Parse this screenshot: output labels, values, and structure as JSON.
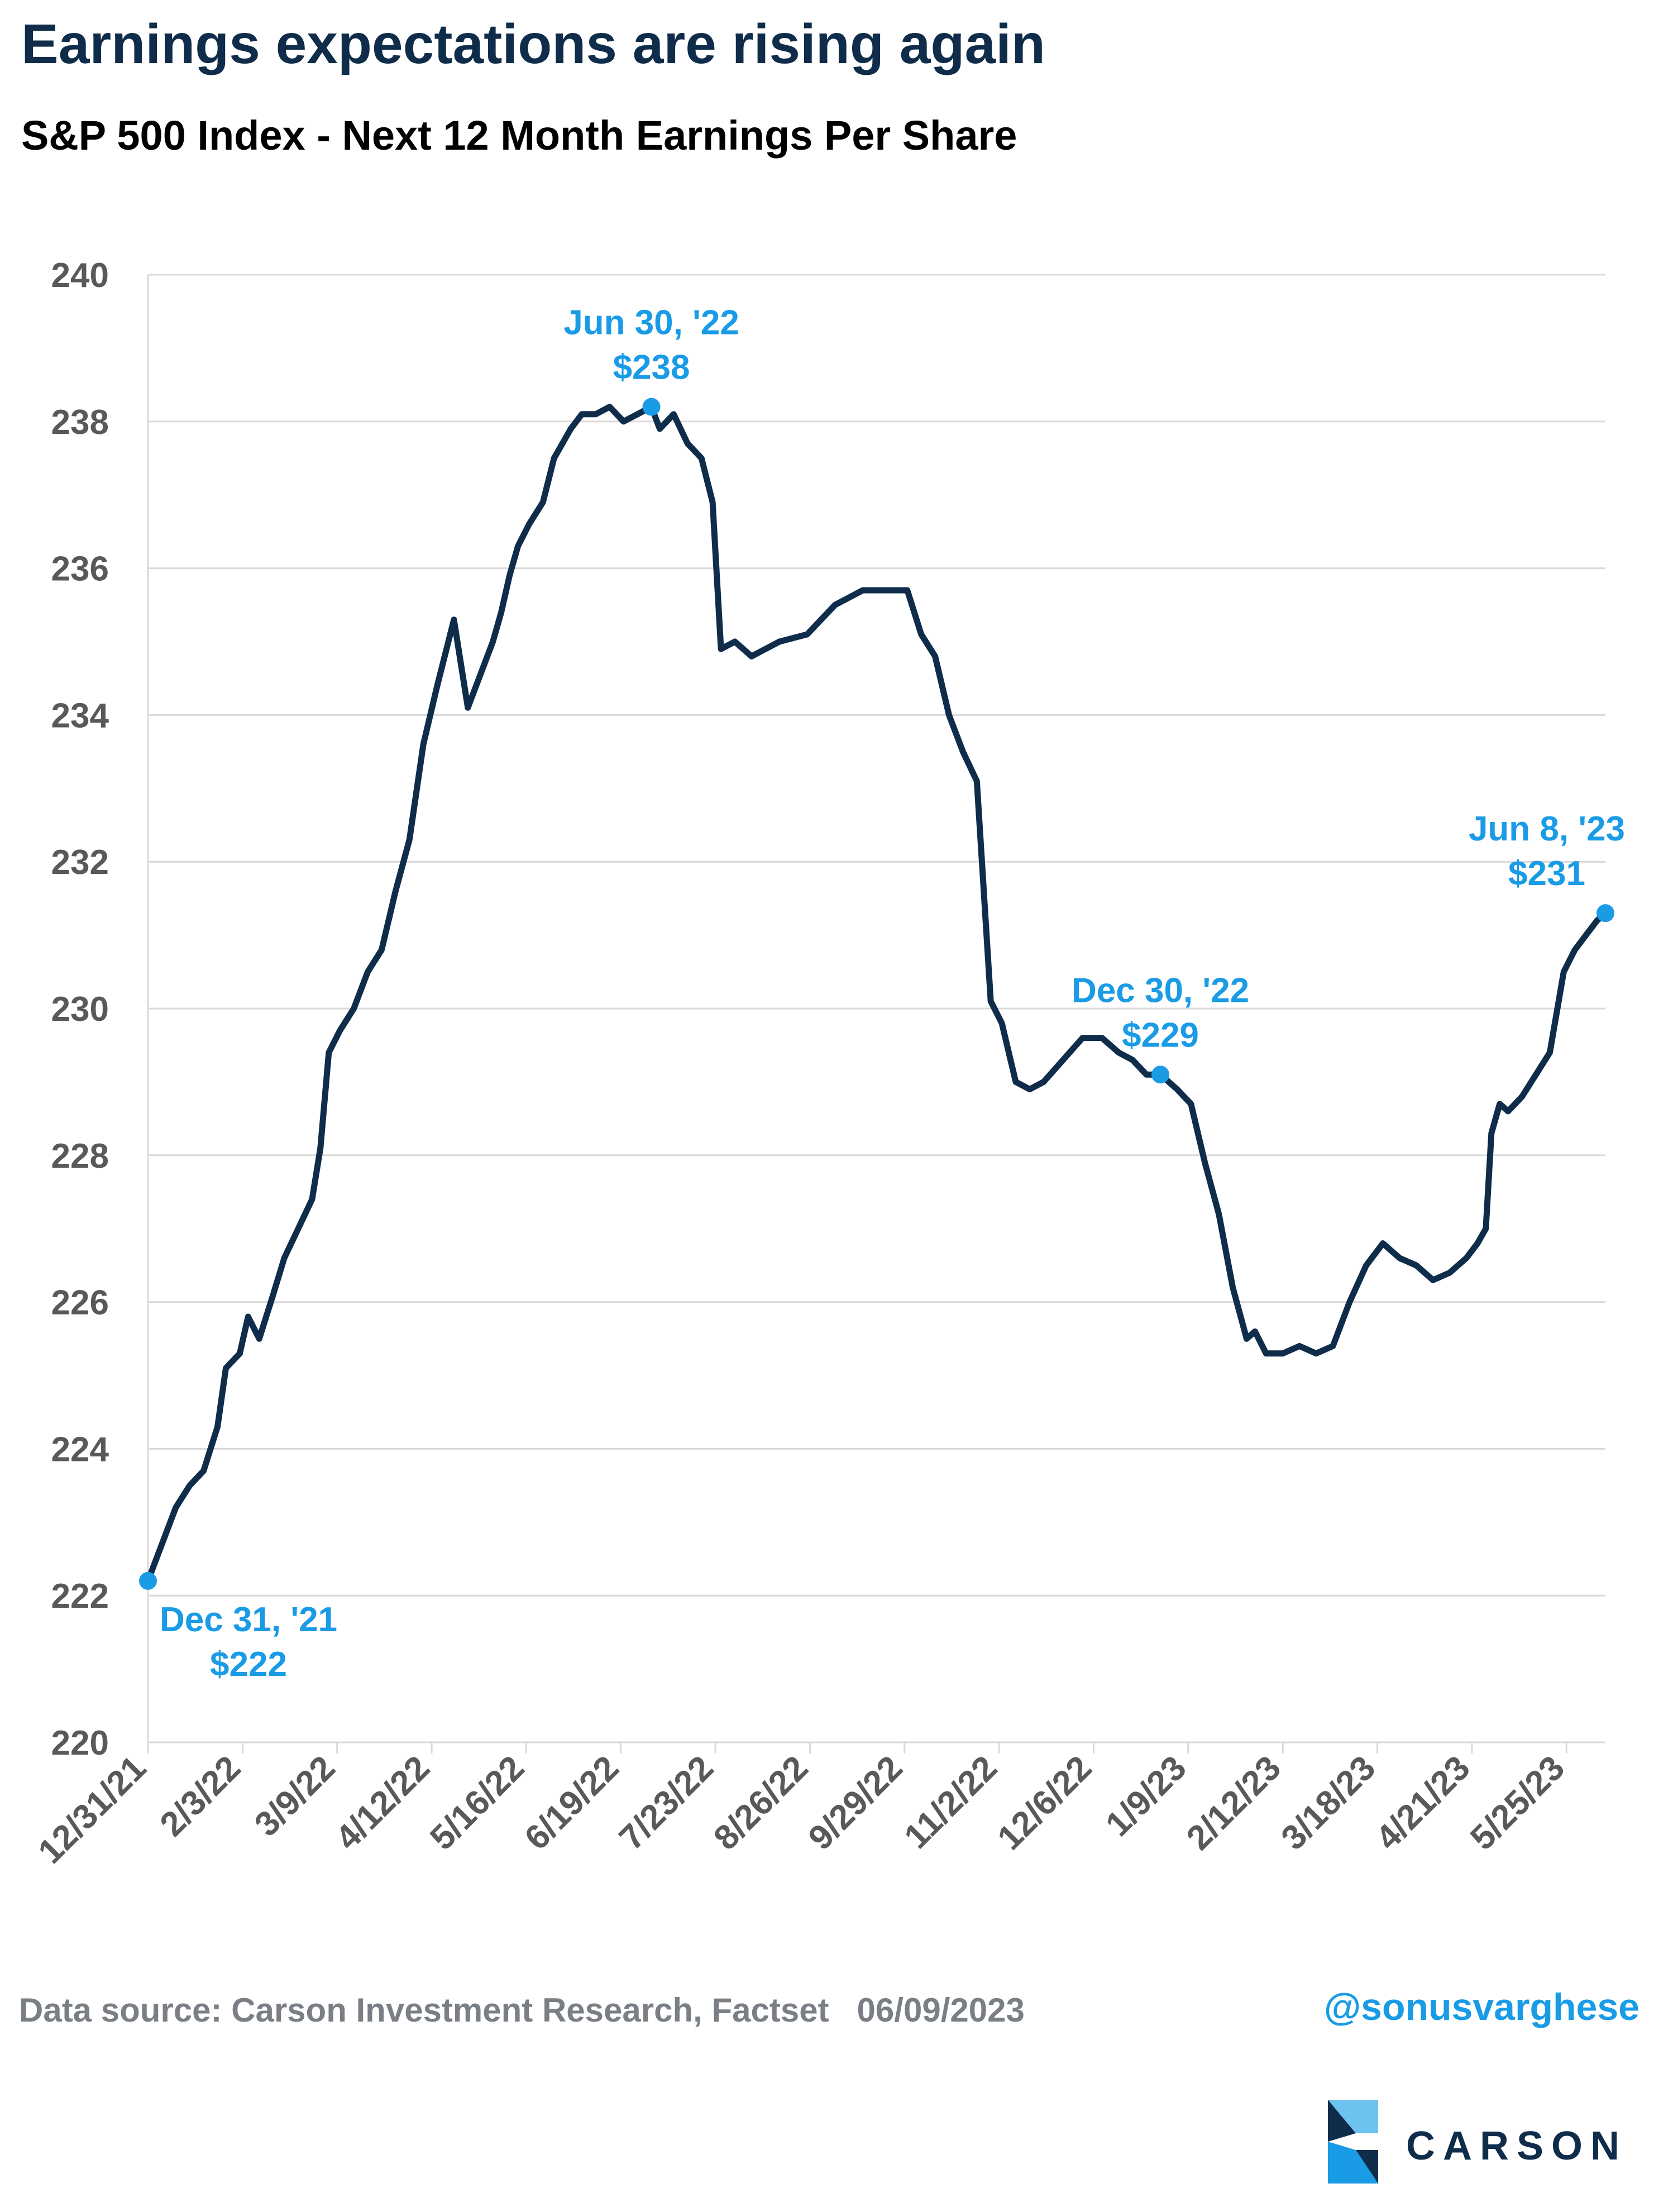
{
  "header": {
    "title": "Earnings expectations are rising again",
    "subtitle": "S&P 500 Index - Next 12 Month Earnings Per Share"
  },
  "footer": {
    "source": "Data source: Carson Investment Research, Factset",
    "date": "06/09/2023",
    "handle": "@sonusvarghese",
    "logo_text": "CARSON"
  },
  "colors": {
    "line": "#0f2d4a",
    "accent": "#1a9be6",
    "grid": "#d9d9d9",
    "axis_text": "#595959"
  },
  "chart_data": {
    "type": "line",
    "title": "S&P 500 Index - Next 12 Month Earnings Per Share",
    "ylim": [
      220,
      240
    ],
    "yticks": [
      220,
      222,
      224,
      226,
      228,
      230,
      232,
      234,
      236,
      238,
      240
    ],
    "xlim": [
      "2021-12-31",
      "2023-06-08"
    ],
    "xtick_labels": [
      "12/31/21",
      "2/3/22",
      "3/9/22",
      "4/12/22",
      "5/16/22",
      "6/19/22",
      "7/23/22",
      "8/26/22",
      "9/29/22",
      "11/2/22",
      "12/6/22",
      "1/9/23",
      "2/12/23",
      "3/18/23",
      "4/21/23",
      "5/25/23"
    ],
    "xtick_dates": [
      "2021-12-31",
      "2022-02-03",
      "2022-03-09",
      "2022-04-12",
      "2022-05-16",
      "2022-06-19",
      "2022-07-23",
      "2022-08-26",
      "2022-09-29",
      "2022-11-02",
      "2022-12-06",
      "2023-01-09",
      "2023-02-12",
      "2023-03-18",
      "2023-04-21",
      "2023-05-25"
    ],
    "grid": true,
    "series": [
      {
        "x": [
          "2021-12-31",
          "2022-01-05",
          "2022-01-10",
          "2022-01-15",
          "2022-01-20",
          "2022-01-25",
          "2022-01-28",
          "2022-02-02",
          "2022-02-05",
          "2022-02-09",
          "2022-02-14",
          "2022-02-18",
          "2022-02-23",
          "2022-02-28",
          "2022-03-03",
          "2022-03-06",
          "2022-03-10",
          "2022-03-15",
          "2022-03-20",
          "2022-03-25",
          "2022-03-30",
          "2022-04-04",
          "2022-04-09",
          "2022-04-14",
          "2022-04-20",
          "2022-04-25",
          "2022-04-30",
          "2022-05-04",
          "2022-05-07",
          "2022-05-10",
          "2022-05-13",
          "2022-05-17",
          "2022-05-22",
          "2022-05-26",
          "2022-06-01",
          "2022-06-05",
          "2022-06-10",
          "2022-06-15",
          "2022-06-20",
          "2022-06-25",
          "2022-06-30",
          "2022-07-03",
          "2022-07-08",
          "2022-07-13",
          "2022-07-18",
          "2022-07-22",
          "2022-07-25",
          "2022-07-30",
          "2022-08-05",
          "2022-08-15",
          "2022-08-25",
          "2022-09-04",
          "2022-09-14",
          "2022-09-24",
          "2022-09-30",
          "2022-10-05",
          "2022-10-10",
          "2022-10-15",
          "2022-10-20",
          "2022-10-25",
          "2022-10-30",
          "2022-11-03",
          "2022-11-08",
          "2022-11-13",
          "2022-11-18",
          "2022-11-25",
          "2022-12-02",
          "2022-12-09",
          "2022-12-15",
          "2022-12-20",
          "2022-12-25",
          "2022-12-30",
          "2023-01-05",
          "2023-01-10",
          "2023-01-15",
          "2023-01-20",
          "2023-01-25",
          "2023-01-30",
          "2023-02-02",
          "2023-02-06",
          "2023-02-12",
          "2023-02-18",
          "2023-02-24",
          "2023-03-02",
          "2023-03-08",
          "2023-03-14",
          "2023-03-20",
          "2023-03-26",
          "2023-04-01",
          "2023-04-07",
          "2023-04-13",
          "2023-04-19",
          "2023-04-23",
          "2023-04-26",
          "2023-04-28",
          "2023-05-01",
          "2023-05-04",
          "2023-05-09",
          "2023-05-14",
          "2023-05-19",
          "2023-05-24",
          "2023-05-28",
          "2023-06-01",
          "2023-06-05",
          "2023-06-08"
        ],
        "y": [
          222.2,
          222.7,
          223.2,
          223.5,
          223.7,
          224.3,
          225.1,
          225.3,
          225.8,
          225.5,
          226.1,
          226.6,
          227.0,
          227.4,
          228.1,
          229.4,
          229.7,
          230.0,
          230.5,
          230.8,
          231.6,
          232.3,
          233.6,
          234.4,
          235.3,
          234.1,
          234.6,
          235.0,
          235.4,
          235.9,
          236.3,
          236.6,
          236.9,
          237.5,
          237.9,
          238.1,
          238.1,
          238.2,
          238.0,
          238.1,
          238.2,
          237.9,
          238.1,
          237.7,
          237.5,
          236.9,
          234.9,
          235.0,
          234.8,
          235.0,
          235.1,
          235.5,
          235.7,
          235.7,
          235.7,
          235.1,
          234.8,
          234.0,
          233.5,
          233.1,
          230.1,
          229.8,
          229.0,
          228.9,
          229.0,
          229.3,
          229.6,
          229.6,
          229.4,
          229.3,
          229.1,
          229.1,
          228.9,
          228.7,
          227.9,
          227.2,
          226.2,
          225.5,
          225.6,
          225.3,
          225.3,
          225.4,
          225.3,
          225.4,
          226.0,
          226.5,
          226.8,
          226.6,
          226.5,
          226.3,
          226.4,
          226.6,
          226.8,
          227.0,
          228.3,
          228.7,
          228.6,
          228.8,
          229.1,
          229.4,
          230.5,
          230.8,
          231.0,
          231.2,
          231.3
        ]
      }
    ],
    "annotations": [
      {
        "date": "2021-12-31",
        "value": 222.2,
        "line1": "Dec 31, '21",
        "line2": "$222",
        "position": "below-right"
      },
      {
        "date": "2022-06-30",
        "value": 238.2,
        "line1": "Jun 30, '22",
        "line2": "$238",
        "position": "above"
      },
      {
        "date": "2022-12-30",
        "value": 229.1,
        "line1": "Dec 30, '22",
        "line2": "$229",
        "position": "above"
      },
      {
        "date": "2023-06-08",
        "value": 231.3,
        "line1": "Jun 8, '23",
        "line2": "$231",
        "position": "above"
      }
    ]
  }
}
